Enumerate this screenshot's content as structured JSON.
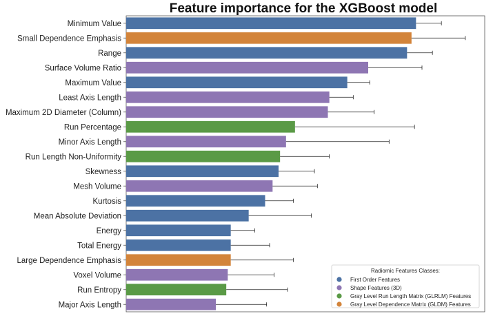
{
  "chart_data": {
    "type": "bar",
    "orientation": "horizontal",
    "title": "Feature importance for the XGBoost model",
    "xlabel": "",
    "ylabel": "",
    "xlim": [
      0,
      0.24
    ],
    "grid": false,
    "legend_position": "bottom-right",
    "categories": [
      "Minimum Value",
      "Small Dependence Emphasis",
      "Range",
      "Surface Volume Ratio",
      "Maximum Value",
      "Least Axis Length",
      "Maximum 2D Diameter (Column)",
      "Run Percentage",
      "Minor Axis Length",
      "Run Length Non-Uniformity",
      "Skewness",
      "Mesh Volume",
      "Kurtosis",
      "Mean Absolute Deviation",
      "Energy",
      "Total Energy",
      "Large Dependence Emphasis",
      "Voxel Volume",
      "Run Entropy",
      "Major Axis Length"
    ],
    "values": [
      0.194,
      0.191,
      0.188,
      0.162,
      0.148,
      0.136,
      0.135,
      0.113,
      0.107,
      0.103,
      0.102,
      0.098,
      0.093,
      0.082,
      0.07,
      0.07,
      0.07,
      0.068,
      0.067,
      0.06
    ],
    "errors": [
      0.017,
      0.036,
      0.017,
      0.036,
      0.015,
      0.016,
      0.031,
      0.08,
      0.069,
      0.033,
      0.024,
      0.03,
      0.019,
      0.042,
      0.016,
      0.026,
      0.042,
      0.031,
      0.041,
      0.034
    ],
    "classes": [
      "first",
      "gldm",
      "first",
      "shape",
      "first",
      "shape",
      "shape",
      "glrlm",
      "shape",
      "glrlm",
      "first",
      "shape",
      "first",
      "first",
      "first",
      "first",
      "gldm",
      "shape",
      "glrlm",
      "shape"
    ],
    "legend": {
      "title": "Radiomic Features Classes:",
      "entries": [
        {
          "key": "first",
          "label": "First Order Features",
          "color": "#4c72a4"
        },
        {
          "key": "shape",
          "label": "Shape Features (3D)",
          "color": "#8e76b3"
        },
        {
          "key": "glrlm",
          "label": "Gray Level Run Length Matrix (GLRLM) Features",
          "color": "#5a9a46"
        },
        {
          "key": "gldm",
          "label": "Gray Level Dependence Matrix (GLDM) Features",
          "color": "#d3843a"
        }
      ]
    }
  }
}
